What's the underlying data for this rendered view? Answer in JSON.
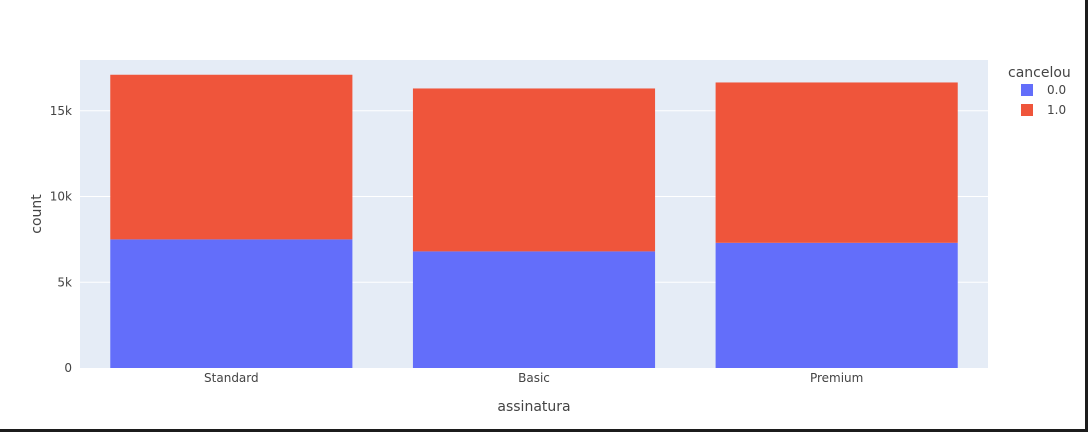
{
  "chart_data": {
    "type": "bar",
    "barmode": "stack",
    "xlabel": "assinatura",
    "ylabel": "count",
    "categories": [
      "Standard",
      "Basic",
      "Premium"
    ],
    "series": [
      {
        "name": "0.0",
        "color": "#636EFA",
        "values": [
          7500,
          6800,
          7300
        ]
      },
      {
        "name": "1.0",
        "color": "#EF553B",
        "values": [
          9600,
          9500,
          9350
        ]
      }
    ],
    "ylim": [
      0,
      17960
    ],
    "yticks": [
      0,
      5000,
      10000,
      15000
    ],
    "ytick_labels": [
      "0",
      "5k",
      "10k",
      "15k"
    ],
    "grid": true,
    "plot_background": "#E5ECF6",
    "legend": {
      "title": "cancelou",
      "placement": "top-right"
    }
  }
}
